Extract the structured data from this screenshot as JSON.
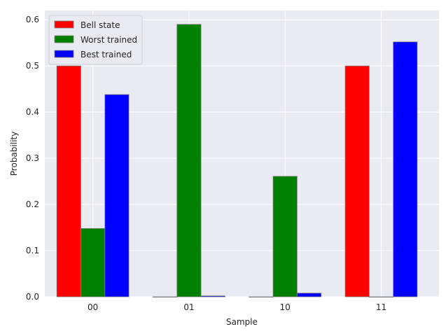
{
  "chart_data": {
    "type": "bar",
    "categories": [
      "00",
      "01",
      "10",
      "11"
    ],
    "series": [
      {
        "name": "Bell state",
        "color": "#ff0000",
        "values": [
          0.5,
          0.0,
          0.0,
          0.5
        ]
      },
      {
        "name": "Worst trained",
        "color": "#008000",
        "values": [
          0.148,
          0.59,
          0.261,
          0.0
        ]
      },
      {
        "name": "Best trained",
        "color": "#0000ff",
        "values": [
          0.438,
          0.002,
          0.008,
          0.552
        ]
      }
    ],
    "xlabel": "Sample",
    "ylabel": "Probability",
    "ylim": [
      0,
      0.62
    ],
    "yticks": [
      "0.0",
      "0.1",
      "0.2",
      "0.3",
      "0.4",
      "0.5",
      "0.6"
    ],
    "grid": true,
    "legend_position": "top-left",
    "style": {
      "background": "#eaeaf2",
      "grid_color": "#ffffff",
      "bar_edge": "#808080"
    }
  }
}
